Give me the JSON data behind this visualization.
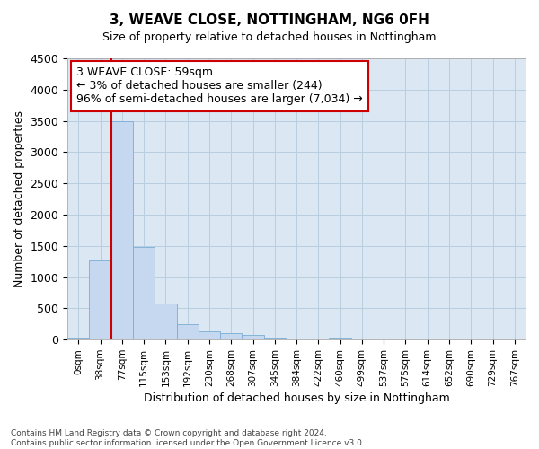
{
  "title": "3, WEAVE CLOSE, NOTTINGHAM, NG6 0FH",
  "subtitle": "Size of property relative to detached houses in Nottingham",
  "xlabel": "Distribution of detached houses by size in Nottingham",
  "ylabel": "Number of detached properties",
  "bar_labels": [
    "0sqm",
    "38sqm",
    "77sqm",
    "115sqm",
    "153sqm",
    "192sqm",
    "230sqm",
    "268sqm",
    "307sqm",
    "345sqm",
    "384sqm",
    "422sqm",
    "460sqm",
    "499sqm",
    "537sqm",
    "575sqm",
    "614sqm",
    "652sqm",
    "690sqm",
    "729sqm",
    "767sqm"
  ],
  "bar_values": [
    30,
    1270,
    3500,
    1480,
    575,
    245,
    135,
    100,
    70,
    30,
    15,
    5,
    30,
    0,
    0,
    0,
    0,
    0,
    0,
    0,
    0
  ],
  "bar_color": "#c5d8ef",
  "bar_edge_color": "#7aadd4",
  "annotation_text": "3 WEAVE CLOSE: 59sqm\n← 3% of detached houses are smaller (244)\n96% of semi-detached houses are larger (7,034) →",
  "annotation_box_color": "#ffffff",
  "annotation_box_edge": "#cc0000",
  "vline_color": "#cc0000",
  "vline_x": 1.5,
  "ylim": [
    0,
    4500
  ],
  "yticks": [
    0,
    500,
    1000,
    1500,
    2000,
    2500,
    3000,
    3500,
    4000,
    4500
  ],
  "grid_color": "#b8cfe0",
  "background_color": "#dbe8f4",
  "footer_line1": "Contains HM Land Registry data © Crown copyright and database right 2024.",
  "footer_line2": "Contains public sector information licensed under the Open Government Licence v3.0."
}
